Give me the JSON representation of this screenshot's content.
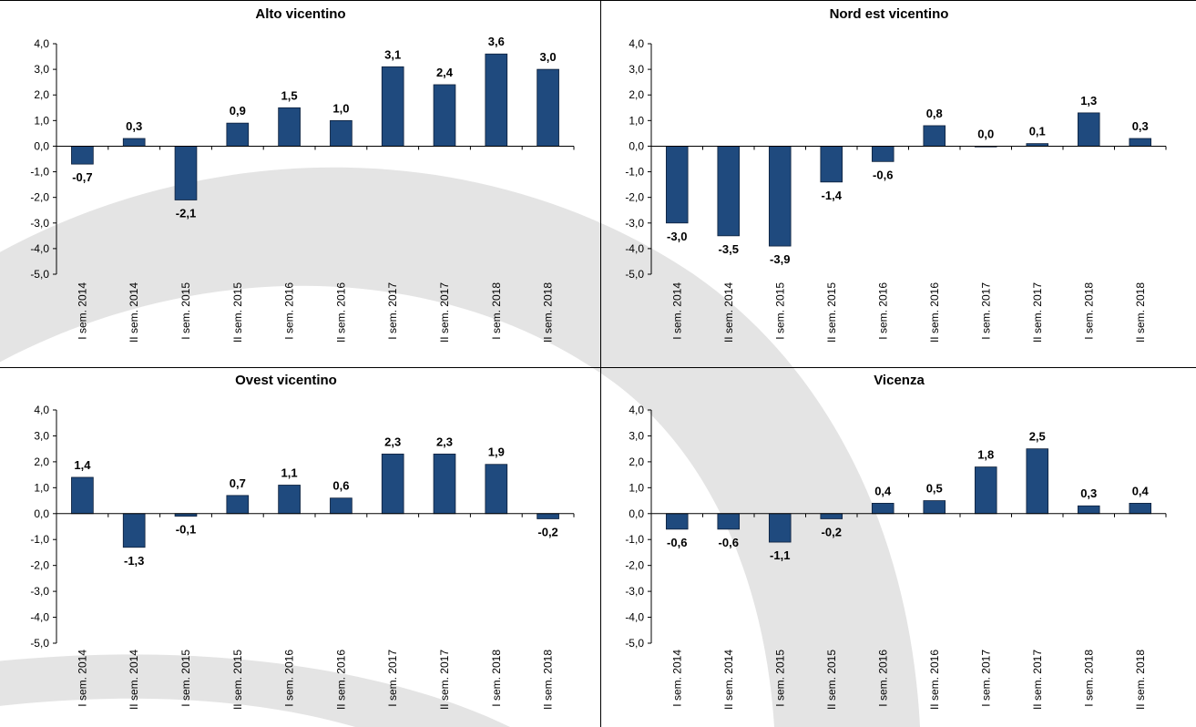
{
  "colors": {
    "bar": "#1f4a7e",
    "bar_stroke": "#0d1f3a",
    "watermark": "#e4e4e4",
    "axis": "#000000"
  },
  "chart_data": [
    {
      "type": "bar",
      "title": "Alto vicentino",
      "categories": [
        "I sem. 2014",
        "II sem. 2014",
        "I sem. 2015",
        "II sem. 2015",
        "I sem. 2016",
        "II sem. 2016",
        "I sem. 2017",
        "II sem. 2017",
        "I sem. 2018",
        "II sem. 2018"
      ],
      "values": [
        -0.7,
        0.3,
        -2.1,
        0.9,
        1.5,
        1.0,
        3.1,
        2.4,
        3.6,
        3.0
      ],
      "value_labels": [
        "-0,7",
        "0,3",
        "-2,1",
        "0,9",
        "1,5",
        "1,0",
        "3,1",
        "2,4",
        "3,6",
        "3,0"
      ],
      "ylim": [
        -5,
        4
      ],
      "yticks": [
        "4,0",
        "3,0",
        "2,0",
        "1,0",
        "0,0",
        "-1,0",
        "-2,0",
        "-3,0",
        "-4,0",
        "-5,0"
      ],
      "xlabel": "",
      "ylabel": "",
      "grid": false,
      "legend": false
    },
    {
      "type": "bar",
      "title": "Nord est vicentino",
      "categories": [
        "I sem. 2014",
        "II sem. 2014",
        "I sem. 2015",
        "II sem. 2015",
        "I sem. 2016",
        "II sem. 2016",
        "I sem. 2017",
        "II sem. 2017",
        "I sem. 2018",
        "II sem. 2018"
      ],
      "values": [
        -3.0,
        -3.5,
        -3.9,
        -1.4,
        -0.6,
        0.8,
        0.0,
        0.1,
        1.3,
        0.3
      ],
      "value_labels": [
        "-3,0",
        "-3,5",
        "-3,9",
        "-1,4",
        "-0,6",
        "0,8",
        "0,0",
        "0,1",
        "1,3",
        "0,3"
      ],
      "ylim": [
        -5,
        4
      ],
      "yticks": [
        "4,0",
        "3,0",
        "2,0",
        "1,0",
        "0,0",
        "-1,0",
        "-2,0",
        "-3,0",
        "-4,0",
        "-5,0"
      ],
      "xlabel": "",
      "ylabel": "",
      "grid": false,
      "legend": false
    },
    {
      "type": "bar",
      "title": "Ovest vicentino",
      "categories": [
        "I sem. 2014",
        "II sem. 2014",
        "I sem. 2015",
        "II sem. 2015",
        "I sem. 2016",
        "II sem. 2016",
        "I sem. 2017",
        "II sem. 2017",
        "I sem. 2018",
        "II sem. 2018"
      ],
      "values": [
        1.4,
        -1.3,
        -0.1,
        0.7,
        1.1,
        0.6,
        2.3,
        2.3,
        1.9,
        -0.2
      ],
      "value_labels": [
        "1,4",
        "-1,3",
        "-0,1",
        "0,7",
        "1,1",
        "0,6",
        "2,3",
        "2,3",
        "1,9",
        "-0,2"
      ],
      "ylim": [
        -5,
        4
      ],
      "yticks": [
        "4,0",
        "3,0",
        "2,0",
        "1,0",
        "0,0",
        "-1,0",
        "-2,0",
        "-3,0",
        "-4,0",
        "-5,0"
      ],
      "xlabel": "",
      "ylabel": "",
      "grid": false,
      "legend": false
    },
    {
      "type": "bar",
      "title": "Vicenza",
      "categories": [
        "I sem. 2014",
        "II sem. 2014",
        "I sem. 2015",
        "II sem. 2015",
        "I sem. 2016",
        "II sem. 2016",
        "I sem. 2017",
        "II sem. 2017",
        "I sem. 2018",
        "II sem. 2018"
      ],
      "values": [
        -0.6,
        -0.6,
        -1.1,
        -0.2,
        0.4,
        0.5,
        1.8,
        2.5,
        0.3,
        0.4
      ],
      "value_labels": [
        "-0,6",
        "-0,6",
        "-1,1",
        "-0,2",
        "0,4",
        "0,5",
        "1,8",
        "2,5",
        "0,3",
        "0,4"
      ],
      "ylim": [
        -5,
        4
      ],
      "yticks": [
        "4,0",
        "3,0",
        "2,0",
        "1,0",
        "0,0",
        "-1,0",
        "-2,0",
        "-3,0",
        "-4,0",
        "-5,0"
      ],
      "xlabel": "",
      "ylabel": "",
      "grid": false,
      "legend": false
    }
  ]
}
